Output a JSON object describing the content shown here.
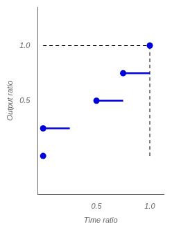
{
  "chart_data": {
    "type": "scatter",
    "xlabel": "Time ratio",
    "ylabel": "Output ratio",
    "xlim": [
      -0.05,
      1.13
    ],
    "ylim": [
      -0.35,
      1.35
    ],
    "xticks": [
      0.5,
      {
        "value": 1.0,
        "label": "1.0"
      }
    ],
    "yticks": [
      0.5,
      {
        "value": 1.0,
        "label": "1.0"
      }
    ],
    "grid": false,
    "series": [
      {
        "type": "scatter",
        "color": "#0000dd",
        "marker": "circle",
        "x": [
          0,
          0,
          0.5,
          0.75,
          1.0
        ],
        "values": [
          0,
          0.25,
          0.5,
          0.75,
          1.0
        ]
      },
      {
        "type": "line",
        "color": "#0000dd",
        "line_style": "solid",
        "x": [
          0,
          0.25
        ],
        "values": [
          0.25,
          0.25
        ]
      },
      {
        "type": "line",
        "color": "#0000dd",
        "line_style": "solid",
        "x": [
          0.5,
          0.75
        ],
        "values": [
          0.5,
          0.5
        ]
      },
      {
        "type": "line",
        "color": "#0000dd",
        "line_style": "solid",
        "x": [
          0.75,
          1.0
        ],
        "values": [
          0.75,
          0.75
        ]
      },
      {
        "type": "line",
        "color": "#000000",
        "line_style": "dashed",
        "x": [
          1.0,
          1.0
        ],
        "values": [
          0,
          1.0
        ]
      },
      {
        "type": "line",
        "color": "#000000",
        "line_style": "dashed",
        "x": [
          0,
          1.0
        ],
        "values": [
          1.0,
          1.0
        ]
      }
    ]
  }
}
